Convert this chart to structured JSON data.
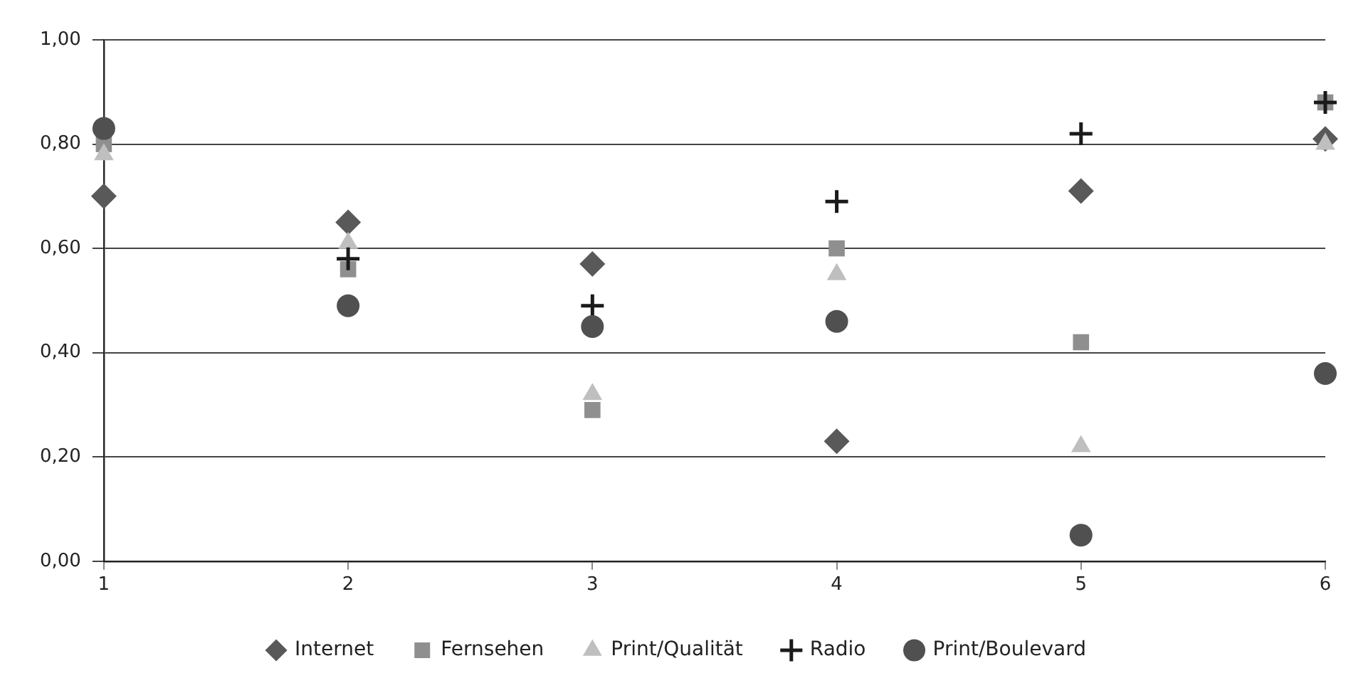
{
  "chart_data": {
    "type": "scatter",
    "x": [
      1,
      2,
      3,
      4,
      5,
      6
    ],
    "xlim": [
      1,
      6
    ],
    "xticks": [
      1,
      2,
      3,
      4,
      5,
      6
    ],
    "ylim": [
      0,
      1
    ],
    "yticks": [
      {
        "value": 0,
        "label": "0,00"
      },
      {
        "value": 0.2,
        "label": "0,20"
      },
      {
        "value": 0.4,
        "label": "0,40"
      },
      {
        "value": 0.6,
        "label": "0,60"
      },
      {
        "value": 0.8,
        "label": "0,80"
      },
      {
        "value": 1,
        "label": "1,00"
      }
    ],
    "grid": "y",
    "legend": "bottom",
    "series": [
      {
        "name": "Internet",
        "color": "#595959",
        "marker": "diamond",
        "values": [
          0.7,
          0.65,
          0.57,
          0.23,
          0.71,
          0.81
        ]
      },
      {
        "name": "Fernsehen",
        "color": "#8f8f8f",
        "marker": "square",
        "values": [
          0.8,
          0.56,
          0.29,
          0.6,
          0.42,
          0.88
        ]
      },
      {
        "name": "Print/Qualität",
        "color": "#bfbfbf",
        "marker": "triangle",
        "values": [
          0.78,
          0.61,
          0.32,
          0.55,
          0.22,
          0.8
        ]
      },
      {
        "name": "Radio",
        "color": "#1a1a1a",
        "marker": "cross",
        "values": [
          null,
          0.58,
          0.49,
          0.69,
          0.82,
          0.88
        ]
      },
      {
        "name": "Print/Boulevard",
        "color": "#505050",
        "marker": "circle",
        "values": [
          0.83,
          0.49,
          0.45,
          0.46,
          0.05,
          0.36
        ]
      }
    ]
  }
}
